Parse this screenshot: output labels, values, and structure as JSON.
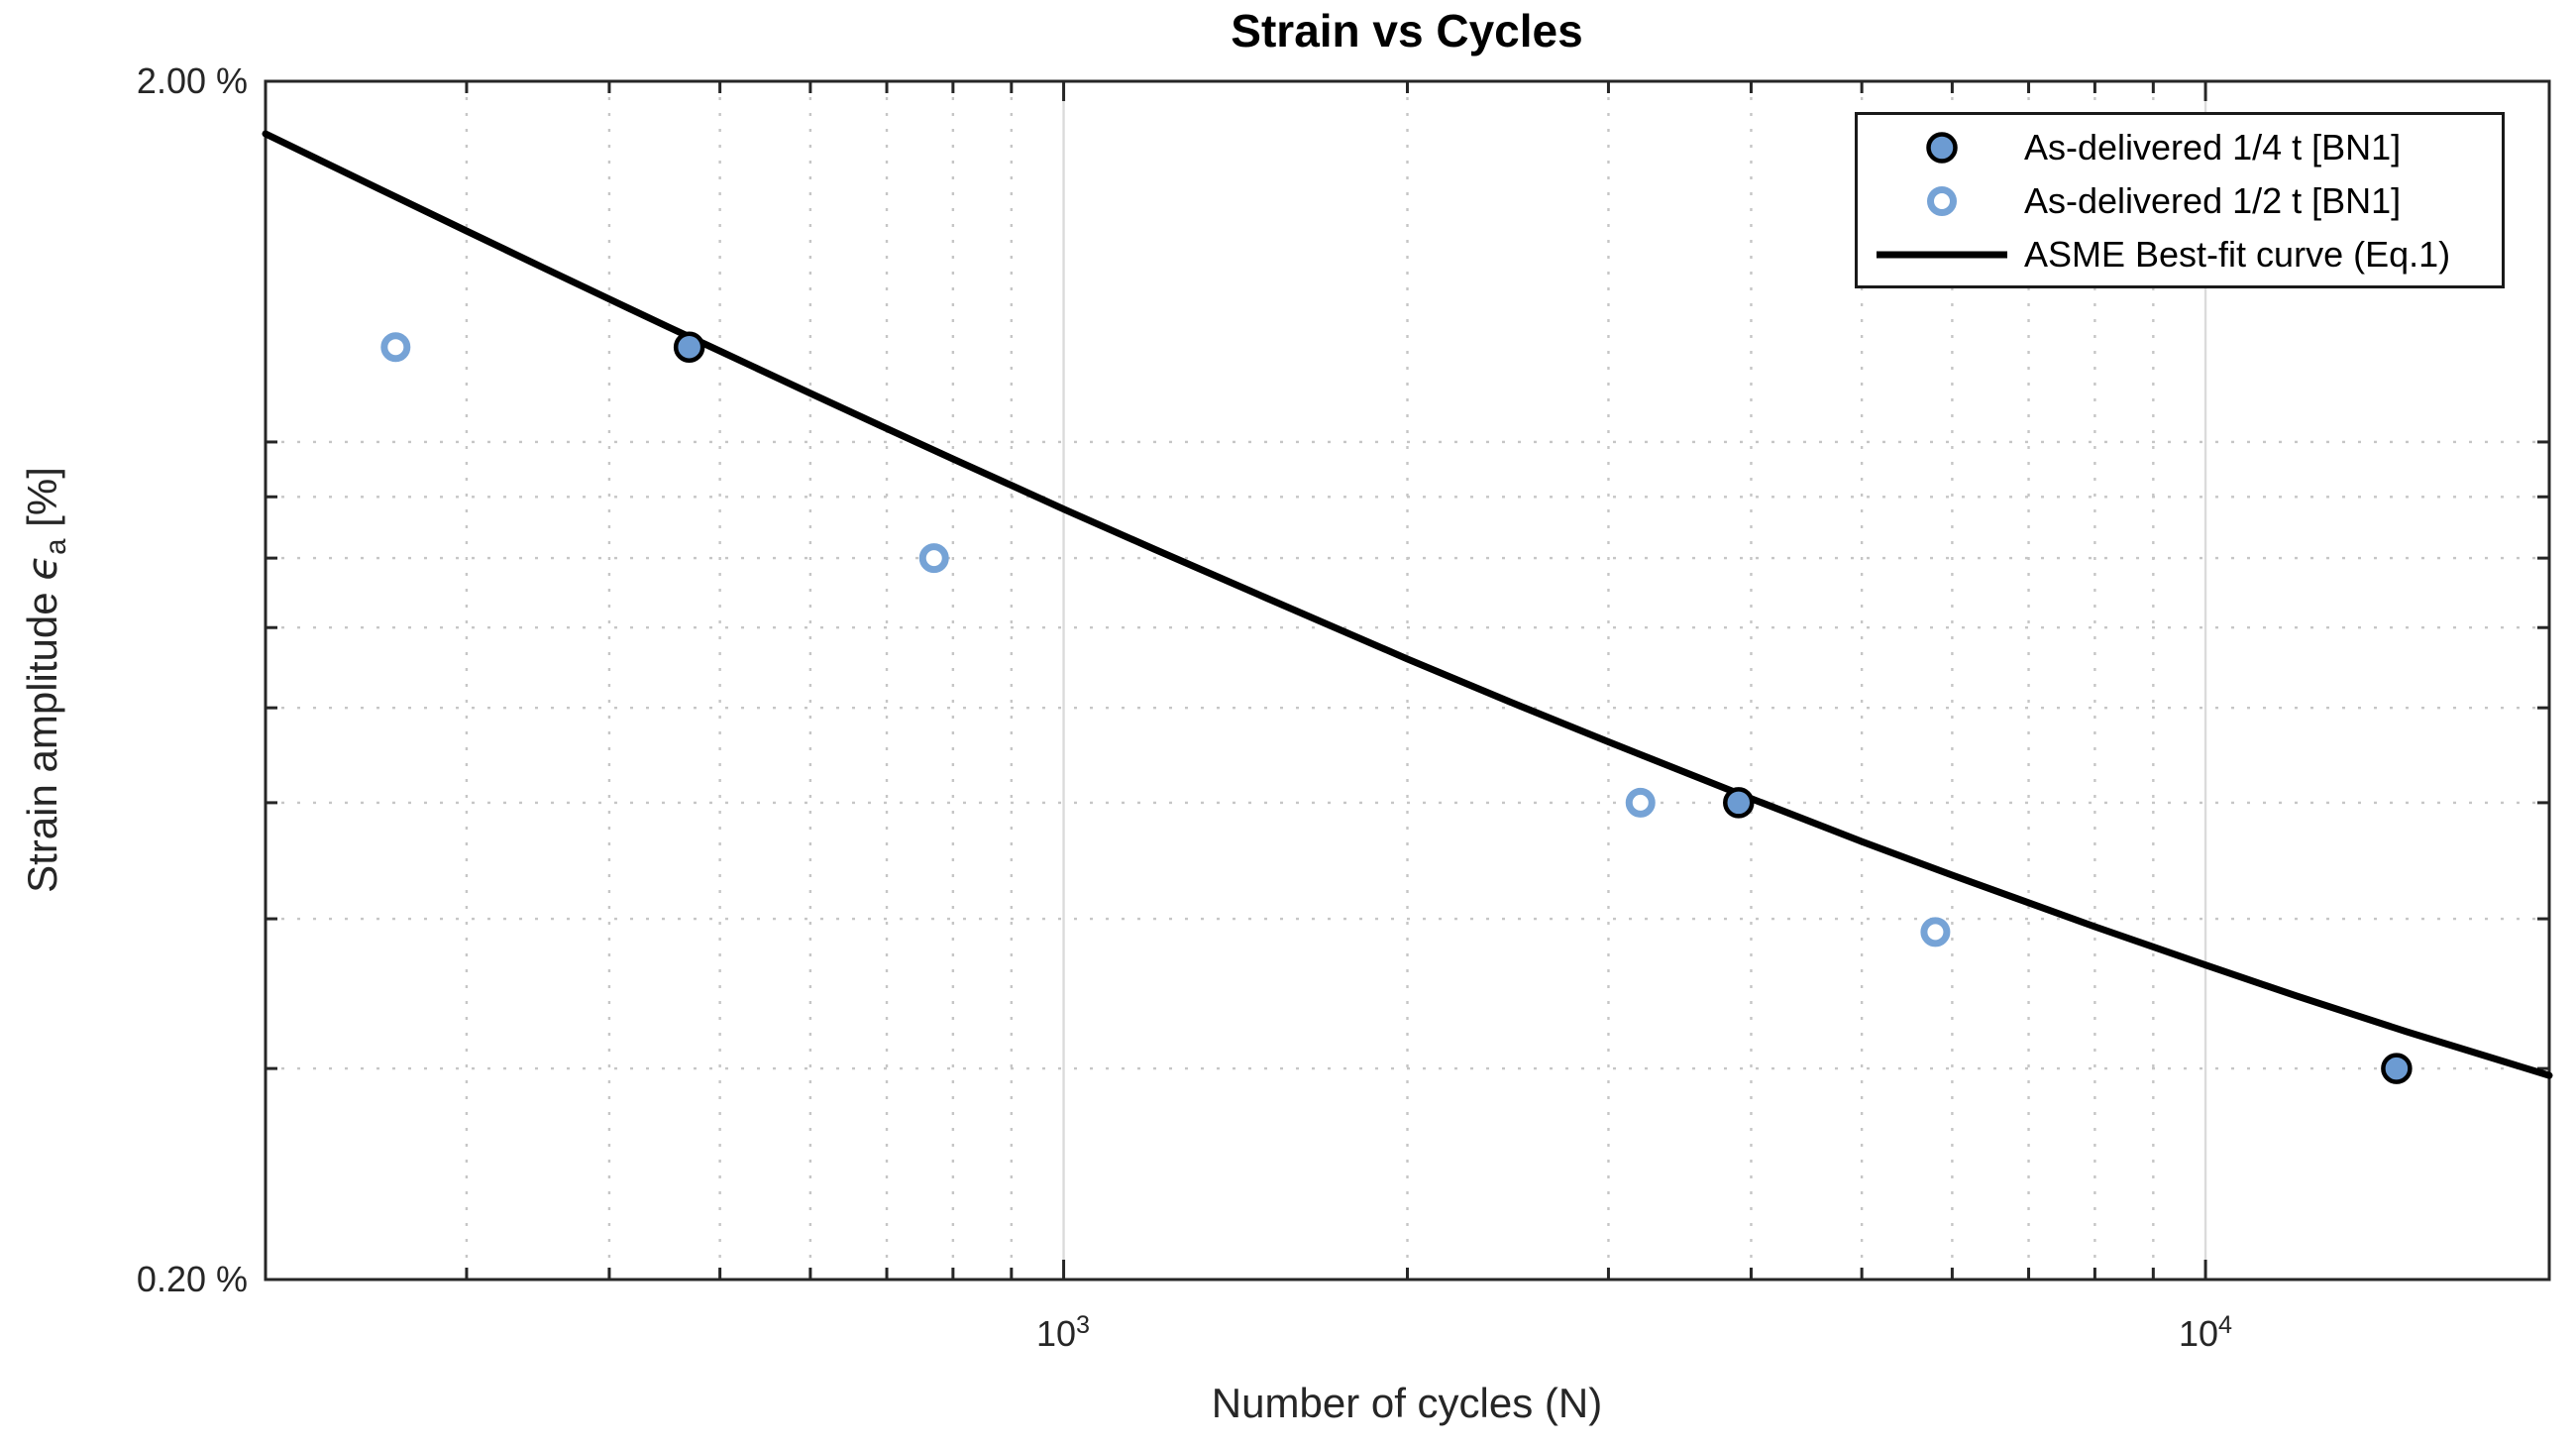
{
  "title": "Strain vs Cycles",
  "axes": {
    "x": {
      "label": "Number of cycles (N)",
      "scale": "log",
      "major_ticks": [
        {
          "value": 1000,
          "base": "10",
          "exp": "3"
        },
        {
          "value": 10000,
          "base": "10",
          "exp": "4"
        }
      ],
      "minor_ticks": [
        300,
        400,
        500,
        600,
        700,
        800,
        900,
        2000,
        3000,
        4000,
        5000,
        6000,
        7000,
        8000,
        9000
      ]
    },
    "y": {
      "label_prefix": "Strain amplitude ",
      "label_symbol": "ϵ",
      "label_sub": "a",
      "label_suffix": " [%]",
      "scale": "log",
      "major_ticks": [
        {
          "value": 2.0,
          "label": "2.00 %"
        },
        {
          "value": 0.2,
          "label": "0.20 %"
        }
      ],
      "minor_ticks": [
        0.3,
        0.4,
        0.5,
        0.6,
        0.7,
        0.8,
        0.9,
        1.0
      ]
    }
  },
  "legend": {
    "position": "upper-right",
    "entries": [
      {
        "label": "As-delivered 1/4 t [BN1]",
        "marker": "filled-circle"
      },
      {
        "label": "As-delivered 1/2 t [BN1]",
        "marker": "open-circle"
      },
      {
        "label": "ASME Best-fit curve (Eq.1)",
        "marker": "line"
      }
    ]
  },
  "colors": {
    "filled_marker_face": "#6C9BD2",
    "filled_marker_edge": "#000000",
    "open_marker_edge": "#76A3D6",
    "curve": "#000000",
    "minor_grid": "#c6c6c6",
    "major_grid": "#dbdbdb",
    "spine": "#262626",
    "text": "#262626"
  },
  "chart_data": {
    "type": "scatter",
    "title": "Strain vs Cycles",
    "xlabel": "Number of cycles (N)",
    "ylabel": "Strain amplitude ϵ_a [%]",
    "xscale": "log",
    "yscale": "log",
    "xlim": [
      200,
      20000
    ],
    "ylim": [
      0.2,
      2.0
    ],
    "grid": "minor dotted, major solid light",
    "legend_position": "upper right",
    "series": [
      {
        "name": "As-delivered 1/4 t [BN1]",
        "type": "scatter",
        "marker": "filled-circle",
        "marker_face": "#6C9BD2",
        "marker_edge": "#000000",
        "points": [
          [
            470,
            1.2
          ],
          [
            3900,
            0.5
          ],
          [
            14700,
            0.3
          ]
        ]
      },
      {
        "name": "As-delivered 1/2 t [BN1]",
        "type": "scatter",
        "marker": "open-circle",
        "marker_face": "#ffffff",
        "marker_edge": "#76A3D6",
        "points": [
          [
            260,
            1.2
          ],
          [
            770,
            0.8
          ],
          [
            3200,
            0.5
          ],
          [
            5800,
            0.39
          ]
        ]
      },
      {
        "name": "ASME Best-fit curve (Eq.1)",
        "type": "line",
        "color": "#000000",
        "formula_estimate": "eps[%] ~ 23.8/sqrt(N) + 0.13",
        "points": [
          [
            200,
            1.808
          ],
          [
            250,
            1.631
          ],
          [
            300,
            1.5
          ],
          [
            350,
            1.398
          ],
          [
            400,
            1.316
          ],
          [
            450,
            1.248
          ],
          [
            500,
            1.191
          ],
          [
            600,
            1.098
          ],
          [
            700,
            1.026
          ],
          [
            800,
            0.968
          ],
          [
            900,
            0.92
          ],
          [
            1000,
            0.879
          ],
          [
            1200,
            0.814
          ],
          [
            1500,
            0.742
          ],
          [
            2000,
            0.659
          ],
          [
            2500,
            0.603
          ],
          [
            3000,
            0.562
          ],
          [
            4000,
            0.504
          ],
          [
            5000,
            0.464
          ],
          [
            6000,
            0.435
          ],
          [
            8000,
            0.394
          ],
          [
            10000,
            0.366
          ],
          [
            12000,
            0.345
          ],
          [
            15000,
            0.322
          ],
          [
            20000,
            0.296
          ]
        ]
      }
    ]
  }
}
